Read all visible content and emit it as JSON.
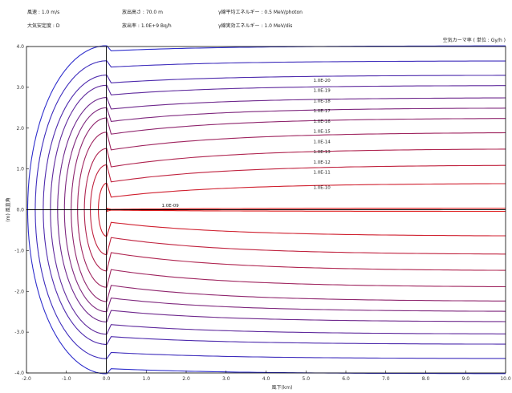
{
  "header": {
    "wind_speed": "風速 : 1.0 m/s",
    "stability": "大気安定度 : D",
    "release_height": "放出高さ : 70.0 m",
    "release_rate": "放出率 : 1.0E+9 Bq/h",
    "gamma_mean_energy": "γ線平均エネルギー : 0.5 MeV/photon",
    "gamma_release_energy": "γ線実効エネルギー : 1.0 MeV/dis"
  },
  "unit_label": "空気カーマ率 ( 単位 : Gy/h )",
  "chart_data": {
    "type": "line",
    "title": "",
    "xlabel": "風下(km)",
    "ylabel": "(m) 風直角",
    "xlim": [
      -2.0,
      10.0
    ],
    "ylim": [
      -4.0,
      4.0
    ],
    "x_ticks": [
      "-2.0",
      "-1.0",
      "0.0",
      "1.0",
      "2.0",
      "3.0",
      "4.0",
      "5.0",
      "6.0",
      "7.0",
      "8.0",
      "9.0",
      "10.0"
    ],
    "y_ticks": [
      "4.0",
      "3.0",
      "2.0",
      "1.0",
      "0.0",
      "-1.0",
      "-2.0",
      "-3.0",
      "-4.0"
    ],
    "grid": false,
    "contours": [
      {
        "name": "1.0E-09",
        "x_back": 0.03,
        "y_end": 0.04,
        "label_x": 1.6,
        "label_y": 0.1
      },
      {
        "name": "1.0E-10",
        "x_back": -0.2,
        "y_end": 0.65,
        "label_x": 5.4,
        "label_y": 0.55
      },
      {
        "name": "1.0E-11",
        "x_back": -0.4,
        "y_end": 1.1,
        "label_x": 5.4,
        "label_y": 0.92
      },
      {
        "name": "1.0E-12",
        "x_back": -0.55,
        "y_end": 1.5,
        "label_x": 5.4,
        "label_y": 1.17
      },
      {
        "name": "1.0E-13",
        "x_back": -0.72,
        "y_end": 1.9,
        "label_x": 5.4,
        "label_y": 1.42
      },
      {
        "name": "1.0E-14",
        "x_back": -0.88,
        "y_end": 2.25,
        "label_x": 5.4,
        "label_y": 1.67
      },
      {
        "name": "1.0E-15",
        "x_back": -1.05,
        "y_end": 2.5,
        "label_x": 5.4,
        "label_y": 1.92
      },
      {
        "name": "1.0E-16",
        "x_back": -1.22,
        "y_end": 2.75,
        "label_x": 5.4,
        "label_y": 2.17
      },
      {
        "name": "1.0E-17",
        "x_back": -1.4,
        "y_end": 3.05,
        "label_x": 5.4,
        "label_y": 2.42
      },
      {
        "name": "1.0E-18",
        "x_back": -1.58,
        "y_end": 3.3,
        "label_x": 5.4,
        "label_y": 2.67
      },
      {
        "name": "1.0E-19",
        "x_back": -1.78,
        "y_end": 3.65,
        "label_x": 5.4,
        "label_y": 2.92
      },
      {
        "name": "1.0E-20",
        "x_back": -1.97,
        "y_end": 4.02,
        "label_x": 5.4,
        "label_y": 3.17
      }
    ],
    "colors": {
      "inner": "#e02020",
      "outer": "#2e2ecc",
      "axis": "#000000"
    }
  }
}
